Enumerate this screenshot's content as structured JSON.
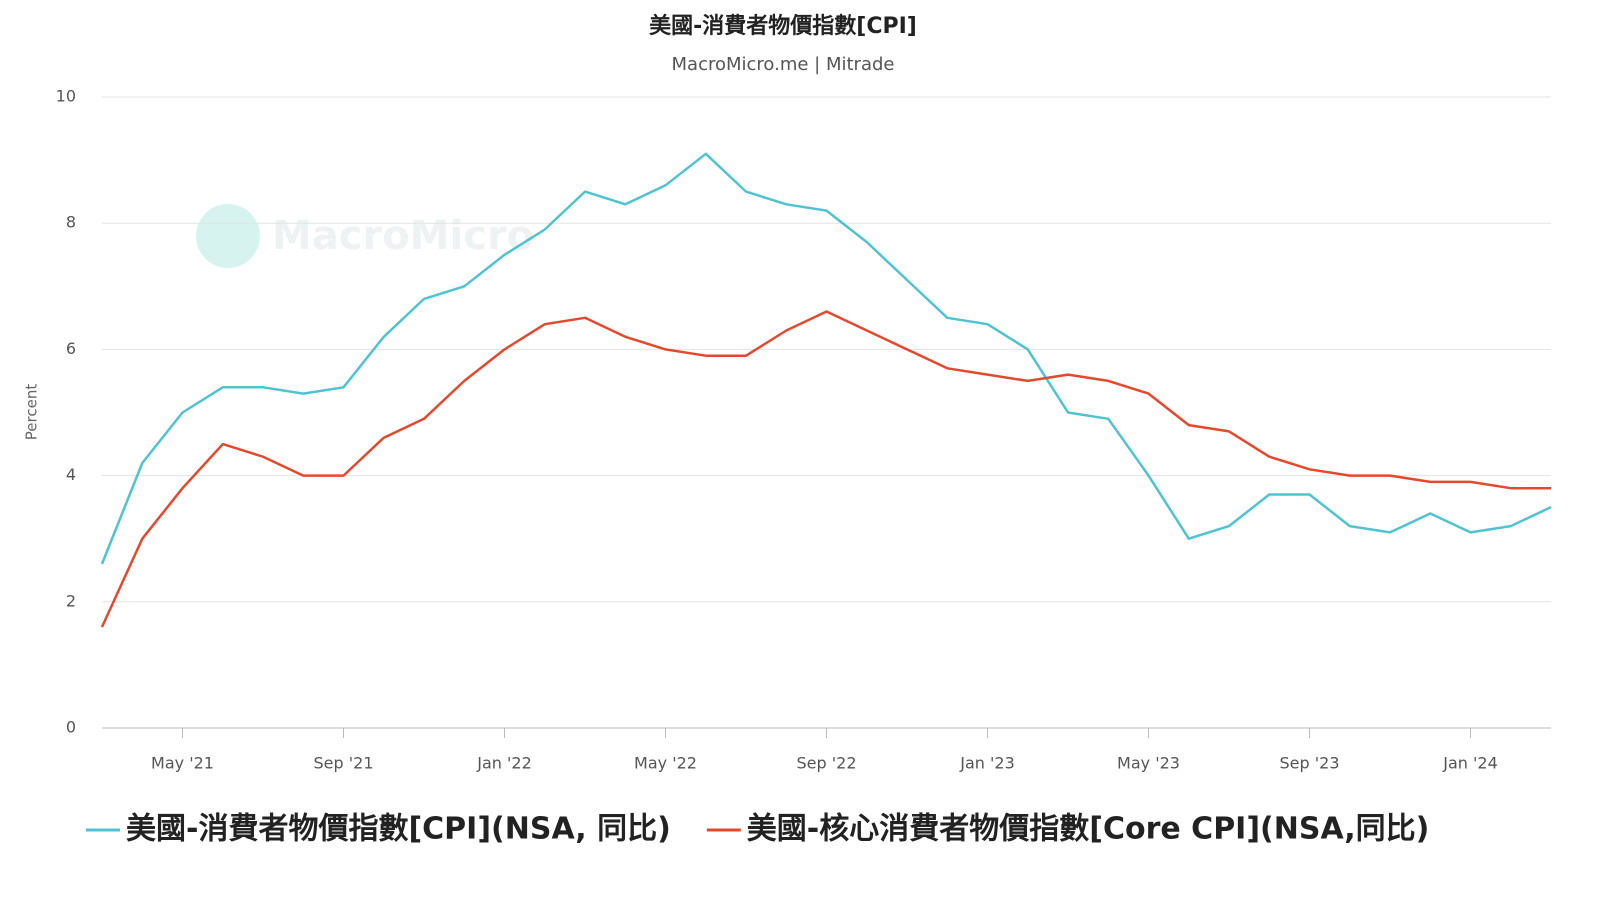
{
  "chart_data": {
    "type": "line",
    "title": "美國-消費者物價指數[CPI]",
    "subtitle": "MacroMicro.me | Mitrade",
    "watermark": "MacroMicro",
    "y_label": "Percent",
    "categories": [
      null,
      null,
      "May '21",
      null,
      null,
      null,
      "Sep '21",
      null,
      null,
      null,
      "Jan '22",
      null,
      null,
      null,
      "May '22",
      null,
      null,
      null,
      "Sep '22",
      null,
      null,
      null,
      "Jan '23",
      null,
      null,
      null,
      "May '23",
      null,
      null,
      null,
      "Sep '23",
      null,
      null,
      null,
      "Jan '24",
      null,
      null
    ],
    "series": [
      {
        "name": "美國-消費者物價指數[CPI](NSA, 同比)",
        "color": "#4fc3d0",
        "values": [
          2.6,
          4.2,
          5.0,
          5.4,
          5.4,
          5.3,
          5.4,
          6.2,
          6.8,
          7.0,
          7.5,
          7.9,
          8.5,
          8.3,
          8.6,
          9.1,
          8.5,
          8.3,
          8.2,
          7.7,
          7.1,
          6.5,
          6.4,
          6.0,
          5.0,
          4.9,
          4.0,
          3.0,
          3.2,
          3.7,
          3.7,
          3.2,
          3.1,
          3.4,
          3.1,
          3.2,
          3.5
        ]
      },
      {
        "name": "美國-核心消費者物價指數[Core CPI](NSA,同比)",
        "color": "#e4492e",
        "values": [
          1.6,
          3.0,
          3.8,
          4.5,
          4.3,
          4.0,
          4.0,
          4.6,
          4.9,
          5.5,
          6.0,
          6.4,
          6.5,
          6.2,
          6.0,
          5.9,
          5.9,
          6.3,
          6.6,
          6.3,
          6.0,
          5.7,
          5.6,
          5.5,
          5.6,
          5.5,
          5.3,
          4.8,
          4.7,
          4.3,
          4.1,
          4.0,
          4.0,
          3.9,
          3.9,
          3.8,
          3.8
        ]
      }
    ],
    "ylim": [
      0,
      10
    ],
    "yticks": [
      0,
      2,
      4,
      6,
      8,
      10
    ],
    "grid": true,
    "legend": "bottom"
  }
}
